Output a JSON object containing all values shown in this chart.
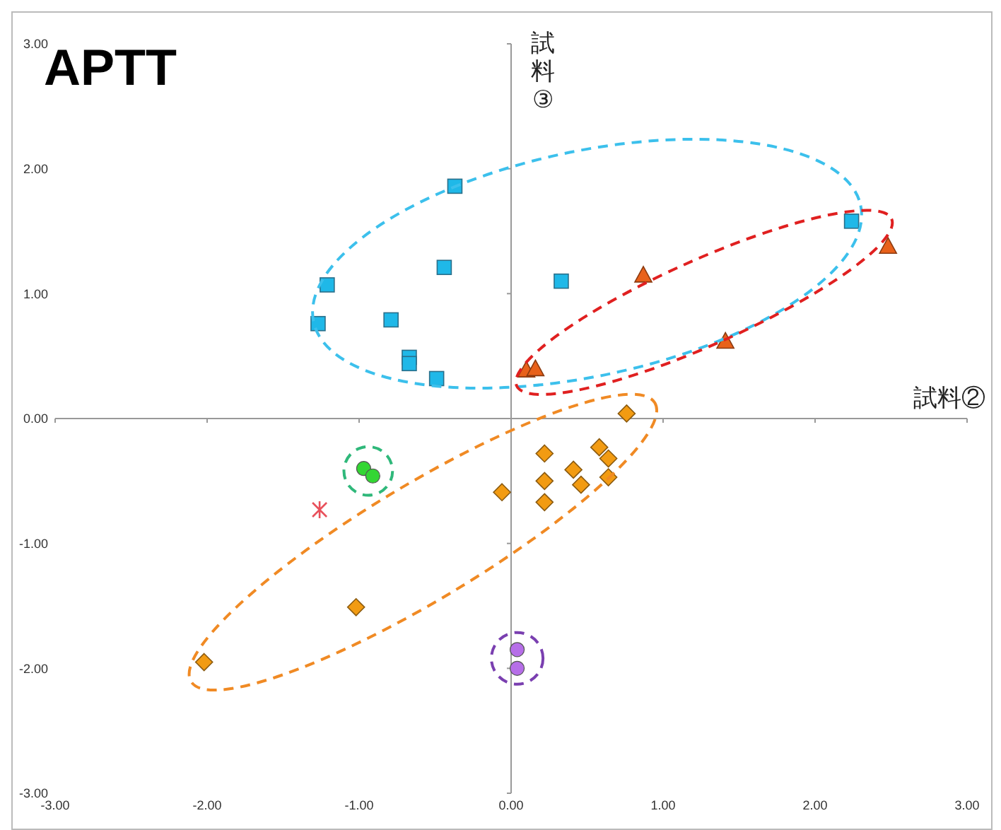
{
  "chart_data": {
    "type": "scatter",
    "title": "APTT",
    "xlabel": "試料②",
    "ylabel": "試料③",
    "xlim": [
      -3,
      3
    ],
    "ylim": [
      -3,
      3
    ],
    "xticks": [
      {
        "value": -3,
        "label": "-3.00"
      },
      {
        "value": -2,
        "label": "-2.00"
      },
      {
        "value": -1,
        "label": "-1.00"
      },
      {
        "value": 0,
        "label": "0.00"
      },
      {
        "value": 1,
        "label": "1.00"
      },
      {
        "value": 2,
        "label": "2.00"
      },
      {
        "value": 3,
        "label": "3.00"
      }
    ],
    "yticks": [
      {
        "value": -3,
        "label": "-3.00"
      },
      {
        "value": -2,
        "label": "-2.00"
      },
      {
        "value": -1,
        "label": "-1.00"
      },
      {
        "value": 0,
        "label": "0.00"
      },
      {
        "value": 1,
        "label": "1.00"
      },
      {
        "value": 2,
        "label": "2.00"
      },
      {
        "value": 3,
        "label": "3.00"
      }
    ],
    "legend": false,
    "series": [
      {
        "color": "#1fb8e8",
        "marker": "square",
        "x": [
          -0.37,
          -1.21,
          -1.27,
          -0.79,
          -0.44,
          -0.67,
          -0.67,
          -0.49,
          0.33,
          2.24
        ],
        "values": [
          1.86,
          1.07,
          0.76,
          0.79,
          1.21,
          0.49,
          0.44,
          0.32,
          1.1,
          1.58
        ]
      },
      {
        "color": "#e8611a",
        "marker": "triangle",
        "x": [
          0.1,
          0.16,
          0.87,
          1.41,
          2.48
        ],
        "values": [
          0.39,
          0.4,
          1.15,
          0.62,
          1.38
        ]
      },
      {
        "color": "#f29b12",
        "marker": "diamond",
        "x": [
          0.76,
          -2.02,
          -1.02,
          -0.06,
          0.22,
          0.22,
          0.22,
          0.41,
          0.46,
          0.58,
          0.64,
          0.64
        ],
        "values": [
          0.04,
          -1.95,
          -1.51,
          -0.59,
          -0.28,
          -0.5,
          -0.67,
          -0.41,
          -0.53,
          -0.23,
          -0.32,
          -0.47
        ]
      },
      {
        "color": "#33d633",
        "marker": "circle",
        "x": [
          -0.97,
          -0.91
        ],
        "values": [
          -0.4,
          -0.46
        ]
      },
      {
        "color": "#b66ee8",
        "marker": "circle",
        "x": [
          0.04,
          0.04
        ],
        "values": [
          -1.85,
          -2.0
        ]
      },
      {
        "color": "#e8505b",
        "marker": "cross",
        "x": [
          -1.26
        ],
        "values": [
          -0.73
        ]
      }
    ]
  }
}
